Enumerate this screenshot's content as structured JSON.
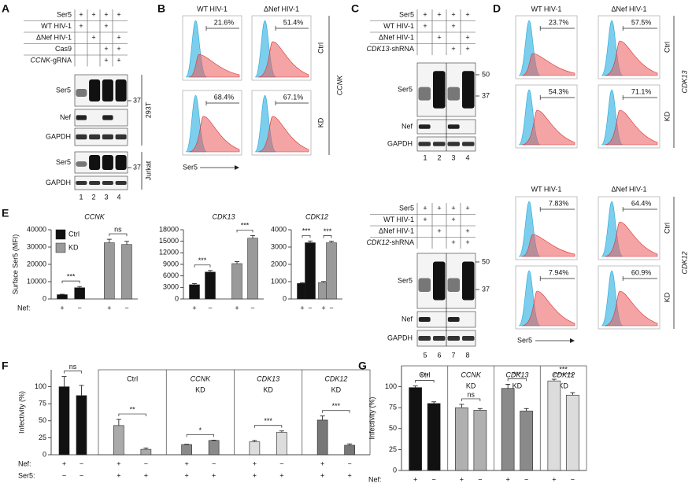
{
  "panel_labels": [
    "A",
    "B",
    "C",
    "D",
    "E",
    "F",
    "G"
  ],
  "panel_a": {
    "conditions": [
      {
        "label": "Ser5",
        "lanes": [
          "+",
          "+",
          "+",
          "+"
        ]
      },
      {
        "label": "WT HIV-1",
        "lanes": [
          "+",
          null,
          "+",
          null
        ]
      },
      {
        "label": "ΔNef HIV-1",
        "lanes": [
          null,
          "+",
          null,
          "+"
        ]
      },
      {
        "label": "Cas9",
        "lanes": [
          null,
          null,
          "+",
          "+"
        ]
      },
      {
        "label": "CCNK-gRNA",
        "lanes": [
          null,
          null,
          "+",
          "+"
        ]
      }
    ],
    "blots": [
      "Ser5",
      "Nef",
      "GAPDH",
      "Ser5",
      "GAPDH"
    ],
    "markers": [
      "37",
      "37"
    ],
    "cell_lines": [
      "293T",
      "Jurkat"
    ],
    "lanes": [
      "1",
      "2",
      "3",
      "4"
    ]
  },
  "panel_b": {
    "columns": [
      "WT HIV-1",
      "ΔNef HIV-1"
    ],
    "rows": [
      "Ctrl",
      "KD"
    ],
    "gene": "CCNK",
    "percentages": [
      [
        "21.6%",
        "51.4%"
      ],
      [
        "68.4%",
        "67.1%"
      ]
    ],
    "x_label": "Ser5"
  },
  "panel_c": {
    "blocks": [
      {
        "conditions": [
          {
            "label": "Ser5",
            "lanes": [
              "+",
              "+",
              "+",
              "+"
            ]
          },
          {
            "label": "WT HIV-1",
            "lanes": [
              "+",
              null,
              "+",
              null
            ]
          },
          {
            "label": "ΔNef HIV-1",
            "lanes": [
              null,
              "+",
              null,
              "+"
            ]
          },
          {
            "label": "CDK13-shRNA",
            "lanes": [
              null,
              null,
              "+",
              "+"
            ]
          }
        ],
        "blots": [
          "Ser5",
          "Nef",
          "GAPDH"
        ],
        "markers": [
          "50",
          "37"
        ],
        "lanes": [
          "1",
          "2",
          "3",
          "4"
        ]
      },
      {
        "conditions": [
          {
            "label": "Ser5",
            "lanes": [
              "+",
              "+",
              "+",
              "+"
            ]
          },
          {
            "label": "WT HIV-1",
            "lanes": [
              "+",
              null,
              "+",
              null
            ]
          },
          {
            "label": "ΔNef HIV-1",
            "lanes": [
              null,
              "+",
              null,
              "+"
            ]
          },
          {
            "label": "CDK12-shRNA",
            "lanes": [
              null,
              null,
              "+",
              "+"
            ]
          }
        ],
        "blots": [
          "Ser5",
          "Nef",
          "GAPDH"
        ],
        "markers": [
          "50",
          "37"
        ],
        "lanes": [
          "5",
          "6",
          "7",
          "8"
        ]
      }
    ]
  },
  "panel_d": {
    "blocks": [
      {
        "columns": [
          "WT HIV-1",
          "ΔNef HIV-1"
        ],
        "rows": [
          "Ctrl",
          "KD"
        ],
        "gene": "CDK13",
        "percentages": [
          [
            "23.7%",
            "57.5%"
          ],
          [
            "54.3%",
            "71.1%"
          ]
        ]
      },
      {
        "columns": [
          "WT HIV-1",
          "ΔNef HIV-1"
        ],
        "rows": [
          "Ctrl",
          "KD"
        ],
        "gene": "CDK12",
        "percentages": [
          [
            "7.83%",
            "64.4%"
          ],
          [
            "7.94%",
            "60.9%"
          ]
        ]
      }
    ],
    "x_label": "Ser5"
  },
  "chart_data": [
    {
      "type": "bar",
      "title": "CCNK",
      "y_label": "Surface Ser5 (MFI)",
      "x_label": "Nef:",
      "categories": [
        "+",
        "−",
        "+",
        "−"
      ],
      "series": [
        {
          "name": "Ctrl",
          "color": "#111111",
          "values": [
            2500,
            6500,
            null,
            null
          ],
          "errors": [
            200,
            700,
            null,
            null
          ]
        },
        {
          "name": "KD",
          "color": "#9a9a9a",
          "values": [
            null,
            null,
            32500,
            31500
          ],
          "errors": [
            null,
            null,
            2000,
            1800
          ]
        }
      ],
      "ylim": [
        0,
        40000
      ],
      "yticks": [
        0,
        10000,
        20000,
        30000,
        40000
      ],
      "significance": [
        "***",
        "ns"
      ],
      "legend": "upper left"
    },
    {
      "type": "bar",
      "title": "CDK13",
      "categories": [
        "+",
        "−",
        "+",
        "−"
      ],
      "series": [
        {
          "color": "#111111",
          "values": [
            3700,
            7000,
            null,
            null
          ],
          "errors": [
            300,
            400,
            null,
            null
          ]
        },
        {
          "color": "#9a9a9a",
          "values": [
            null,
            null,
            9200,
            15800
          ],
          "errors": [
            null,
            null,
            500,
            700
          ]
        }
      ],
      "ylim": [
        0,
        18000
      ],
      "yticks": [
        0,
        3000,
        6000,
        9000,
        12000,
        15000,
        18000
      ],
      "significance": [
        "***",
        "***"
      ]
    },
    {
      "type": "bar",
      "title": "CDK12",
      "categories": [
        "+",
        "−",
        "+",
        "−"
      ],
      "series": [
        {
          "color": "#111111",
          "values": [
            900,
            3250,
            null,
            null
          ],
          "errors": [
            40,
            100,
            null,
            null
          ]
        },
        {
          "color": "#9a9a9a",
          "values": [
            null,
            null,
            950,
            3250
          ],
          "errors": [
            null,
            null,
            60,
            90
          ]
        }
      ],
      "ylim": [
        0,
        4000
      ],
      "yticks": [
        0,
        1000,
        2000,
        3000,
        4000
      ],
      "significance": [
        "***",
        "***"
      ]
    },
    {
      "type": "bar",
      "y_label": "Infectivity (%)",
      "ylim": [
        0,
        125
      ],
      "yticks": [
        0,
        25,
        50,
        75,
        100
      ],
      "row_labels": [
        "Nef:",
        "Ser5:"
      ],
      "groups": [
        {
          "values": [
            100,
            87
          ],
          "errors": [
            15,
            15
          ],
          "color": "#111111",
          "significance": "ns",
          "row_values": [
            [
              "+",
              "−"
            ],
            [
              "−",
              "−"
            ]
          ]
        },
        {
          "name": [
            "Ctrl"
          ],
          "values": [
            43,
            8
          ],
          "errors": [
            9,
            2
          ],
          "color": "#aaaaaa",
          "significance": "**",
          "row_values": [
            [
              "+",
              "−"
            ],
            [
              "+",
              "+"
            ]
          ]
        },
        {
          "name": [
            "CCNK",
            "KD"
          ],
          "values": [
            15,
            21
          ],
          "errors": [
            0.5,
            0.5
          ],
          "color": "#8a8a8a",
          "significance": "*",
          "row_values": [
            [
              "+",
              "−"
            ],
            [
              "+",
              "+"
            ]
          ]
        },
        {
          "name": [
            "CDK13",
            "KD"
          ],
          "values": [
            19,
            33
          ],
          "errors": [
            2,
            2
          ],
          "color": "#dddddd",
          "significance": "***",
          "row_values": [
            [
              "+",
              "−"
            ],
            [
              "+",
              "+"
            ]
          ]
        },
        {
          "name": [
            "CDK12",
            "KD"
          ],
          "values": [
            51,
            14
          ],
          "errors": [
            6,
            2
          ],
          "color": "#777777",
          "significance": "***",
          "row_values": [
            [
              "+",
              "−"
            ],
            [
              "+",
              "+"
            ]
          ]
        }
      ]
    },
    {
      "type": "bar",
      "y_label": "Infectivity (%)",
      "ylim": [
        0,
        125
      ],
      "yticks": [
        0,
        25,
        50,
        75,
        100
      ],
      "row_labels": [
        "Nef:"
      ],
      "groups": [
        {
          "name": [
            "Ctrl"
          ],
          "values": [
            99,
            80
          ],
          "errors": [
            2,
            2
          ],
          "color": "#111111",
          "significance": "***",
          "row_values": [
            [
              "+",
              "−"
            ]
          ]
        },
        {
          "name": [
            "CCNK",
            "KD"
          ],
          "values": [
            75,
            72
          ],
          "errors": [
            4,
            2
          ],
          "color": "#b0b0b0",
          "significance": "ns",
          "row_values": [
            [
              "+",
              "−"
            ]
          ]
        },
        {
          "name": [
            "CDK13",
            "KD"
          ],
          "values": [
            98,
            71
          ],
          "errors": [
            5,
            3
          ],
          "color": "#8a8a8a",
          "significance": "***",
          "row_values": [
            [
              "+",
              "−"
            ]
          ]
        },
        {
          "name": [
            "CDK12",
            "KD"
          ],
          "values": [
            107,
            90
          ],
          "errors": [
            2,
            3
          ],
          "color": "#dcdcdc",
          "significance": "***",
          "row_values": [
            [
              "+",
              "−"
            ]
          ]
        }
      ]
    }
  ]
}
